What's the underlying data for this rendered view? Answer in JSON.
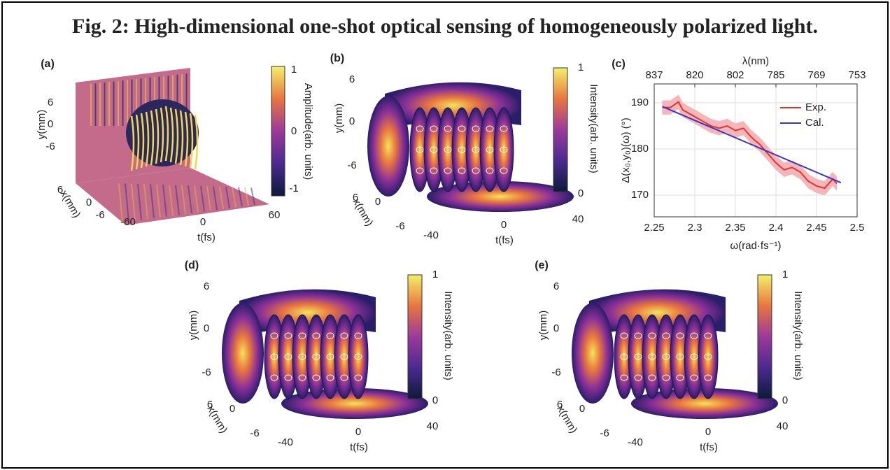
{
  "title": "Fig. 2: High-dimensional one-shot optical sensing of homogeneously polarized light.",
  "panels": [
    {
      "label": "(a)",
      "y_label": "y(mm)",
      "y_ticks": [
        6,
        0,
        -6
      ],
      "x_label": "x(mm)",
      "x_ticks": [
        6,
        0,
        -6
      ],
      "t_label": "t(fs)",
      "t_ticks": [
        -60,
        0,
        60
      ],
      "colorbar_label": "Amplitude(arb. units)",
      "colorbar_ticks": [
        1,
        0,
        -1
      ]
    },
    {
      "label": "(b)",
      "y_label": "y(mm)",
      "y_ticks": [
        6,
        0,
        -6
      ],
      "x_label": "x(mm)",
      "x_ticks": [
        6,
        0,
        -6
      ],
      "t_label": "t(fs)",
      "t_ticks": [
        -40,
        0,
        40
      ],
      "colorbar_label": "Intensity(arb. units)",
      "colorbar_ticks": [
        1,
        0
      ]
    },
    {
      "label": "(d)",
      "y_label": "y(mm)",
      "y_ticks": [
        6,
        0,
        -6
      ],
      "x_label": "x(mm)",
      "x_ticks": [
        6,
        0,
        -6
      ],
      "t_label": "t(fs)",
      "t_ticks": [
        -40,
        0,
        40
      ],
      "colorbar_label": "Intensity(arb. units)",
      "colorbar_ticks": [
        1,
        0
      ]
    },
    {
      "label": "(e)",
      "y_label": "y(mm)",
      "y_ticks": [
        6,
        0,
        -6
      ],
      "x_label": "x(mm)",
      "x_ticks": [
        6,
        0,
        -6
      ],
      "t_label": "t(fs)",
      "t_ticks": [
        -40,
        0,
        40
      ],
      "colorbar_label": "Intensity(arb. units)",
      "colorbar_ticks": [
        1,
        0
      ]
    }
  ],
  "chart_data": {
    "type": "line",
    "label": "(c)",
    "xlabel": "ω(rad·fs⁻¹)",
    "ylabel": "Δ(x₀,y₀)(ω) (°)",
    "x2label": "λ(nm)",
    "xlim": [
      2.25,
      2.5
    ],
    "xticks": [
      2.25,
      2.3,
      2.35,
      2.4,
      2.45,
      2.5
    ],
    "x2ticks": [
      {
        "value": 2.25,
        "label": "837"
      },
      {
        "value": 2.3,
        "label": "820"
      },
      {
        "value": 2.35,
        "label": "802"
      },
      {
        "value": 2.4,
        "label": "785"
      },
      {
        "value": 2.45,
        "label": "769"
      },
      {
        "value": 2.5,
        "label": "753"
      }
    ],
    "ylim": [
      165.3,
      194.1
    ],
    "yticks": [
      170,
      180,
      190
    ],
    "grid": true,
    "legend": "upper right",
    "series": [
      {
        "name": "Exp.",
        "color": "#e8322e",
        "band_color": "#f4b6b8",
        "x": [
          2.26,
          2.27,
          2.28,
          2.285,
          2.29,
          2.3,
          2.31,
          2.32,
          2.33,
          2.34,
          2.35,
          2.36,
          2.37,
          2.38,
          2.39,
          2.4,
          2.41,
          2.42,
          2.43,
          2.44,
          2.45,
          2.46,
          2.47,
          2.475
        ],
        "values": [
          189,
          189,
          190.2,
          188.5,
          188,
          187,
          186,
          185,
          184.5,
          185,
          184,
          184.5,
          182.5,
          181,
          179,
          177,
          175.5,
          176,
          175,
          173,
          172,
          171.5,
          173.5,
          172.5
        ],
        "errors": [
          1.5,
          1.5,
          1.5,
          1.5,
          1.5,
          1.5,
          1.5,
          1.5,
          1.5,
          1.5,
          1.5,
          1.5,
          1.5,
          1.5,
          1.5,
          1.5,
          1.5,
          1.5,
          1.5,
          1.5,
          1.5,
          1.5,
          1.5,
          1.5
        ]
      },
      {
        "name": "Cal.",
        "color": "#3535c8",
        "x": [
          2.26,
          2.48
        ],
        "values": [
          189.2,
          172.7
        ]
      }
    ]
  }
}
